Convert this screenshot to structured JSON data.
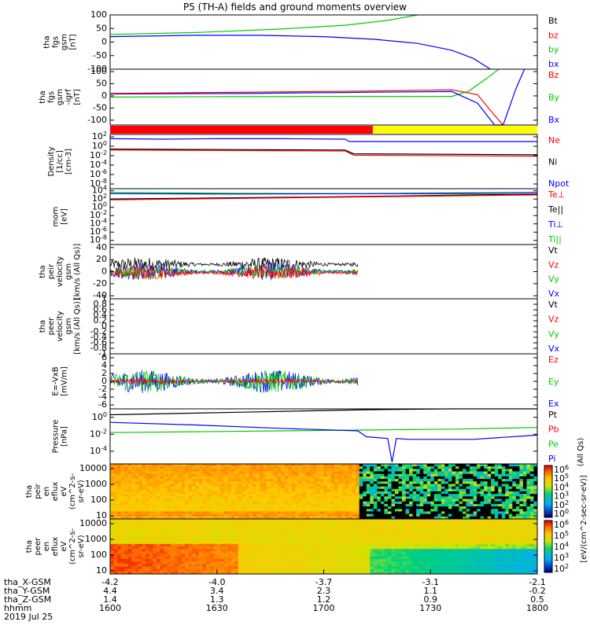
{
  "title": "P5 (TH-A) fields and ground moments overview",
  "colors": {
    "black": "#000000",
    "red": "#ff0000",
    "green": "#00cc00",
    "blue": "#0000ff",
    "bar_red": "#ff0000",
    "bar_yellow": "#ffff00"
  },
  "chart_data": [
    {
      "type": "line",
      "ylabel": [
        "tha",
        "fgs",
        "gsm",
        "[nT]"
      ],
      "ylim": [
        -100,
        100
      ],
      "yticks": [
        -100,
        -50,
        0,
        50,
        100
      ],
      "legend": [
        "Bt",
        "bz",
        "by",
        "bx"
      ],
      "legend_colors": [
        "black",
        "red",
        "green",
        "blue"
      ],
      "series": [
        {
          "name": "by",
          "color": "green",
          "x": [
            0,
            0.2,
            0.4,
            0.55,
            0.65,
            0.72
          ],
          "y": [
            28,
            35,
            48,
            62,
            80,
            100
          ]
        },
        {
          "name": "bx",
          "color": "blue",
          "x": [
            0,
            0.2,
            0.35,
            0.5,
            0.62,
            0.72,
            0.8,
            0.85,
            0.89
          ],
          "y": [
            20,
            25,
            25,
            20,
            10,
            -5,
            -30,
            -60,
            -100
          ]
        }
      ]
    },
    {
      "type": "line",
      "ylabel": [
        "tha",
        "fgs",
        "gsm",
        "-igrf",
        "[nT]"
      ],
      "ylim": [
        -120,
        110
      ],
      "yticks": [
        -100,
        -50,
        0,
        50,
        100
      ],
      "legend": [
        "Bz",
        "By",
        "Bx"
      ],
      "legend_colors": [
        "red",
        "green",
        "blue"
      ],
      "series": [
        {
          "name": "By",
          "color": "green",
          "x": [
            0,
            0.3,
            0.6,
            0.8,
            0.84,
            0.88,
            0.91
          ],
          "y": [
            -5,
            -3,
            -2,
            -2,
            20,
            70,
            110
          ]
        },
        {
          "name": "Bx",
          "color": "blue",
          "x": [
            0,
            0.3,
            0.6,
            0.8,
            0.86,
            0.9,
            0.92,
            0.95,
            0.97
          ],
          "y": [
            8,
            10,
            15,
            18,
            -30,
            -120,
            -120,
            30,
            110
          ]
        },
        {
          "name": "Bz",
          "color": "red",
          "x": [
            0,
            0.3,
            0.6,
            0.8,
            0.86,
            0.9,
            0.92
          ],
          "y": [
            10,
            15,
            20,
            25,
            5,
            -80,
            -120
          ]
        }
      ]
    },
    {
      "type": "line",
      "ylog": true,
      "ylabel": [
        "Density",
        "[1/cc]",
        "[cm-3]"
      ],
      "ylim_exp": [
        -9,
        2.5
      ],
      "yticks": [
        "10^2",
        "10^0",
        "10^-2",
        "10^-4",
        "10^-6",
        "10^-8"
      ],
      "ytick_exp": [
        2,
        0,
        -2,
        -4,
        -6,
        -8
      ],
      "legend": [
        "Ne",
        "Ni",
        "Npot"
      ],
      "legend_colors": [
        "red",
        "black",
        "blue"
      ],
      "series": [
        {
          "name": "Npot",
          "color": "blue",
          "x": [
            0,
            0.12,
            0.25,
            0.4,
            0.55,
            0.56,
            1.0
          ],
          "y": [
            1.6,
            1.5,
            1.6,
            1.6,
            1.5,
            1.0,
            1.0
          ]
        },
        {
          "name": "Ni",
          "color": "black",
          "x": [
            0,
            0.55,
            0.57,
            1.0
          ],
          "y": [
            -0.6,
            -0.8,
            -1.6,
            -1.8
          ]
        },
        {
          "name": "Ne",
          "color": "red",
          "x": [
            0,
            0.55,
            0.57,
            1.0
          ],
          "y": [
            -0.8,
            -1.0,
            -1.9,
            -2.1
          ]
        }
      ]
    },
    {
      "type": "line",
      "ylog": true,
      "ylabel": [
        "mom",
        "[eV]"
      ],
      "ylim_exp": [
        -9,
        4.5
      ],
      "yticks": [
        "10^4",
        "10^2",
        "10^0",
        "10^-2",
        "10^-4",
        "10^-6",
        "10^-8"
      ],
      "ytick_exp": [
        4,
        2,
        0,
        -2,
        -4,
        -6,
        -8
      ],
      "legend": [
        "Te⊥",
        "Te||",
        "Ti⊥",
        "Ti||"
      ],
      "legend_colors": [
        "red",
        "black",
        "blue",
        "green"
      ],
      "series": [
        {
          "name": "Ti||",
          "color": "green",
          "x": [
            0,
            0.3,
            0.6,
            1.0
          ],
          "y": [
            3.6,
            3.4,
            3.3,
            3.2
          ]
        },
        {
          "name": "Ti⊥",
          "color": "blue",
          "x": [
            0,
            0.3,
            0.6,
            1.0
          ],
          "y": [
            3.3,
            3.2,
            3.3,
            3.6
          ]
        },
        {
          "name": "Te||",
          "color": "black",
          "x": [
            0,
            0.5,
            1.0
          ],
          "y": [
            2.0,
            2.5,
            3.2
          ]
        },
        {
          "name": "Te⊥",
          "color": "red",
          "x": [
            0,
            0.5,
            1.0
          ],
          "y": [
            1.8,
            2.4,
            3.0
          ]
        }
      ]
    },
    {
      "type": "line",
      "ylabel": [
        "tha",
        "peir",
        "velocity",
        "gsm",
        "[km/s (All Qs)]"
      ],
      "ylim": [
        -45,
        45
      ],
      "yticks": [
        -40,
        -20,
        0,
        20,
        40
      ],
      "legend": [
        "Vt",
        "Vz",
        "Vy",
        "Vx"
      ],
      "legend_colors": [
        "black",
        "red",
        "green",
        "blue"
      ],
      "noisy": true,
      "series": [
        {
          "name": "Vt",
          "color": "black",
          "xmax": 0.58,
          "mean": 12,
          "amp": 10
        },
        {
          "name": "Vx",
          "color": "blue",
          "xmax": 0.58,
          "mean": 0,
          "amp": 12
        },
        {
          "name": "Vy",
          "color": "green",
          "xmax": 0.58,
          "mean": 0,
          "amp": 10
        },
        {
          "name": "Vz",
          "color": "red",
          "xmax": 0.58,
          "mean": -2,
          "amp": 10
        }
      ]
    },
    {
      "type": "line",
      "ylabel": [
        "tha",
        "peer",
        "velocity",
        "gsm",
        "[km/s (All Qs)]"
      ],
      "ylim": [
        -1,
        1
      ],
      "yticks": [
        -1.0,
        -0.8,
        -0.6,
        -0.4,
        -0.2,
        0.0,
        0.2,
        0.4,
        0.6,
        0.8,
        1.0
      ],
      "legend": [
        "Vt",
        "Vz",
        "Vy",
        "Vx"
      ],
      "legend_colors": [
        "black",
        "red",
        "green",
        "blue"
      ],
      "series": []
    },
    {
      "type": "line",
      "ylabel": [
        "E=-VxB",
        "[mV/m]"
      ],
      "ylim": [
        -7,
        7
      ],
      "yticks": [
        -6,
        -4,
        -2,
        0,
        2,
        4,
        6
      ],
      "legend": [
        "Ez",
        "Ey",
        "Ex"
      ],
      "legend_colors": [
        "red",
        "green",
        "blue"
      ],
      "noisy": true,
      "series": [
        {
          "name": "Ex",
          "color": "blue",
          "xmax": 0.58,
          "mean": 0,
          "amp": 2.5
        },
        {
          "name": "Ey",
          "color": "green",
          "xmax": 0.58,
          "mean": 0,
          "amp": 2.5
        },
        {
          "name": "Ez",
          "color": "red",
          "xmax": 0.58,
          "mean": 0,
          "amp": 0.6
        }
      ]
    },
    {
      "type": "line",
      "ylog": true,
      "ylabel": [
        "Pressure",
        "[nPa]"
      ],
      "ylim_exp": [
        -5.5,
        1
      ],
      "yticks": [
        "10^0",
        "10^-2",
        "10^-4"
      ],
      "ytick_exp": [
        0,
        -2,
        -4
      ],
      "legend": [
        "Pt",
        "Pb",
        "Pe",
        "Pi"
      ],
      "legend_colors": [
        "black",
        "red",
        "green",
        "blue"
      ],
      "side_label": "(All Qs)",
      "series": [
        {
          "name": "Pt",
          "color": "black",
          "x": [
            0,
            0.3,
            0.6,
            0.8,
            1.0
          ],
          "y": [
            0.3,
            0.6,
            0.9,
            1.2,
            1.5
          ]
        },
        {
          "name": "Pe",
          "color": "green",
          "x": [
            0,
            0.2,
            0.4,
            0.6,
            0.8,
            1.0
          ],
          "y": [
            -1.8,
            -1.7,
            -1.6,
            -1.5,
            -1.4,
            -1.2
          ]
        },
        {
          "name": "Pi",
          "color": "blue",
          "x": [
            0,
            0.2,
            0.4,
            0.58,
            0.6,
            0.65,
            0.66,
            0.67,
            0.7,
            0.85,
            1.0
          ],
          "y": [
            -0.6,
            -0.9,
            -1.3,
            -1.6,
            -2.3,
            -2.5,
            -5.3,
            -2.5,
            -2.6,
            -2.6,
            -2.1
          ]
        }
      ]
    },
    {
      "type": "heatmap",
      "ylog": true,
      "ylabel": [
        "tha",
        "peir",
        "en",
        "eflux",
        "eV",
        "(cm^2-s-",
        "sr-eV)"
      ],
      "yticks": [
        "10000",
        "1000",
        "100",
        "10"
      ],
      "ytick_exp": [
        4,
        3,
        2,
        1
      ],
      "ylim_exp": [
        0.8,
        4.3
      ],
      "colorbar_ticks": [
        "10^6",
        "10^5",
        "10^4",
        "10^3",
        "10^2",
        "10^0"
      ]
    },
    {
      "type": "heatmap",
      "ylog": true,
      "ylabel": [
        "tha",
        "peer",
        "en",
        "eflux",
        "eV",
        "(cm^2-s-",
        "sr-eV)"
      ],
      "yticks": [
        "10000",
        "1000",
        "100",
        "10"
      ],
      "ytick_exp": [
        4,
        3,
        2,
        1
      ],
      "ylim_exp": [
        0.8,
        4.3
      ],
      "colorbar_ticks": [
        "10^6",
        "10^5",
        "10^4",
        "10^3",
        "10^2"
      ]
    }
  ],
  "colorbar_label": "[eV/(cm^2-sec-sr-eV)]",
  "xaxis": {
    "row_labels": [
      "tha_X-GSM",
      "tha_Y-GSM",
      "tha_Z-GSM",
      "hhmm",
      "2019 Jul 25"
    ],
    "ticks": [
      {
        "frac": 0.0,
        "x": "-4.2",
        "y": "4.4",
        "z": "1.4",
        "hhmm": "1600"
      },
      {
        "frac": 0.25,
        "x": "-4.0",
        "y": "3.4",
        "z": "1.3",
        "hhmm": "1630"
      },
      {
        "frac": 0.5,
        "x": "-3.7",
        "y": "2.3",
        "z": "1.2",
        "hhmm": "1700"
      },
      {
        "frac": 0.75,
        "x": "-3.1",
        "y": "1.1",
        "z": "0.9",
        "hhmm": "1730"
      },
      {
        "frac": 1.0,
        "x": "-2.1",
        "y": "-0.2",
        "z": "0.5",
        "hhmm": "1800"
      }
    ]
  }
}
